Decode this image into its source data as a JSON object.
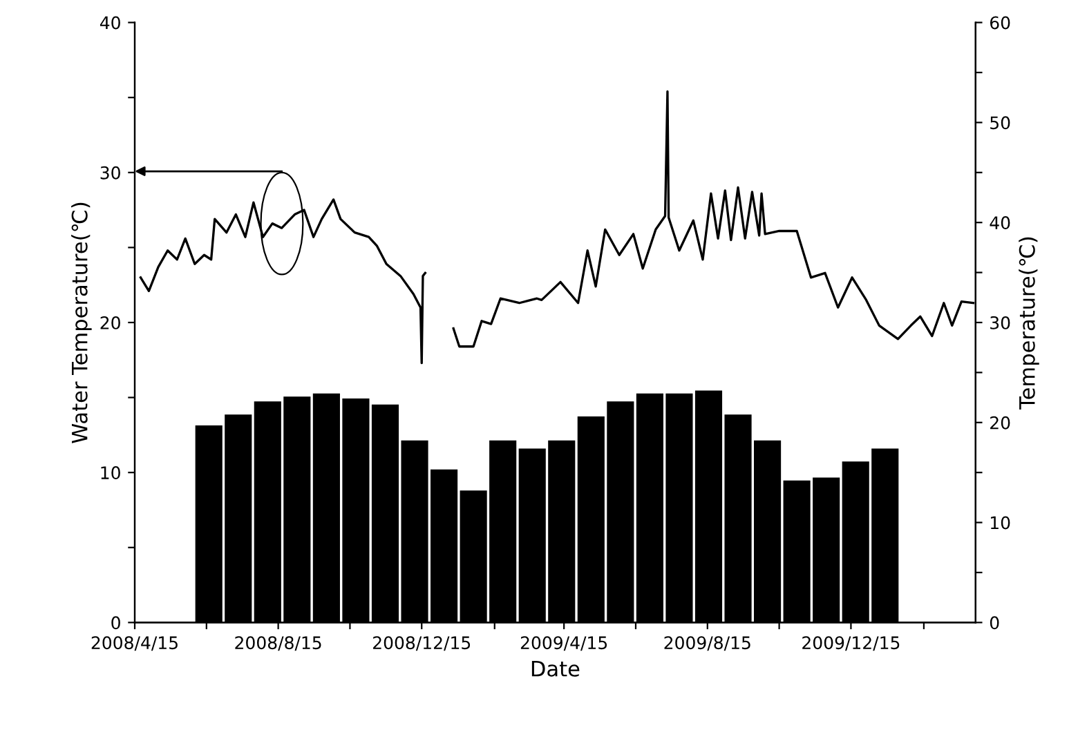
{
  "chart_data": {
    "type": "line",
    "xlabel": "Date",
    "ylabel": "Water Temperature(℃)",
    "y2label": "Temperature(℃)",
    "xlim": [
      "2008-04-15",
      "2010-03-31"
    ],
    "xticks": [
      {
        "value": "2008-04-15",
        "label": "2008/4/15"
      },
      {
        "value": "2008-06-15",
        "label": null
      },
      {
        "value": "2008-08-15",
        "label": "2008/8/15"
      },
      {
        "value": "2008-10-15",
        "label": null
      },
      {
        "value": "2008-12-15",
        "label": "2008/12/15"
      },
      {
        "value": "2009-02-15",
        "label": null
      },
      {
        "value": "2009-04-15",
        "label": "2009/4/15"
      },
      {
        "value": "2009-06-15",
        "label": null
      },
      {
        "value": "2009-08-15",
        "label": "2009/8/15"
      },
      {
        "value": "2009-10-15",
        "label": null
      },
      {
        "value": "2009-12-15",
        "label": "2009/12/15"
      },
      {
        "value": "2010-02-15",
        "label": null
      }
    ],
    "ylim": [
      0,
      40
    ],
    "yticks": [
      0,
      {
        "value": 5,
        "label": null
      },
      10,
      {
        "value": 15,
        "label": null
      },
      20,
      {
        "value": 25,
        "label": null
      },
      30,
      {
        "value": 35,
        "label": null
      },
      40
    ],
    "y2lim": [
      0,
      60
    ],
    "y2ticks": [
      0,
      {
        "value": 5,
        "label": null
      },
      10,
      {
        "value": 15,
        "label": null
      },
      20,
      {
        "value": 25,
        "label": null
      },
      30,
      {
        "value": 35,
        "label": null
      },
      40,
      {
        "value": 45,
        "label": null
      },
      50,
      {
        "value": 55,
        "label": null
      },
      60
    ],
    "grid": false,
    "legend": false,
    "marker": "none",
    "line_style": "solid",
    "series": [
      {
        "type": "bar",
        "axis": "y2",
        "color": "#000000",
        "x": [
          "2008-06-17",
          "2008-07-12",
          "2008-08-06",
          "2008-08-31",
          "2008-09-25",
          "2008-10-20",
          "2008-11-14",
          "2008-12-09",
          "2009-01-03",
          "2009-01-28",
          "2009-02-22",
          "2009-03-19",
          "2009-04-13",
          "2009-05-08",
          "2009-06-02",
          "2009-06-27",
          "2009-07-22",
          "2009-08-16",
          "2009-09-10",
          "2009-10-05",
          "2009-10-30",
          "2009-11-24",
          "2009-12-19",
          "2010-01-13"
        ],
        "values": [
          19.7,
          20.8,
          22.1,
          22.6,
          22.9,
          22.4,
          21.8,
          18.2,
          15.3,
          13.2,
          18.2,
          17.4,
          18.2,
          20.6,
          22.1,
          22.9,
          22.9,
          23.2,
          20.8,
          18.2,
          14.2,
          14.5,
          16.1,
          17.4
        ]
      },
      {
        "color": "#000000",
        "x": [
          "2008-04-20",
          "2008-04-27",
          "2008-05-05",
          "2008-05-13",
          "2008-05-21",
          "2008-05-28",
          "2008-06-05",
          "2008-06-13",
          "2008-06-19",
          "2008-06-22",
          "2008-07-02",
          "2008-07-10",
          "2008-07-18",
          "2008-07-25",
          "2008-08-02",
          "2008-08-10",
          "2008-08-18",
          "2008-08-29",
          "2008-09-06",
          "2008-09-14",
          "2008-09-21",
          "2008-10-01",
          "2008-10-07",
          "2008-10-19",
          "2008-10-31",
          "2008-11-07",
          "2008-11-15",
          "2008-11-27",
          "2008-12-08",
          "2008-12-14",
          "2008-12-15",
          "2008-12-16",
          "2008-12-18",
          "2008-12-28",
          "2009-01-11",
          "2009-01-16",
          "2009-01-28",
          "2009-02-04",
          "2009-02-12",
          "2009-02-20",
          "2009-03-08",
          "2009-03-23",
          "2009-03-27",
          "2009-04-12",
          "2009-04-27",
          "2009-05-05",
          "2009-05-12",
          "2009-05-20",
          "2009-06-01",
          "2009-06-13",
          "2009-06-21",
          "2009-07-02",
          "2009-07-10",
          "2009-07-12",
          "2009-07-13",
          "2009-07-22",
          "2009-08-03",
          "2009-08-11",
          "2009-08-18",
          "2009-08-24",
          "2009-08-30",
          "2009-09-04",
          "2009-09-10",
          "2009-09-16",
          "2009-09-22",
          "2009-09-28",
          "2009-09-30",
          "2009-10-03",
          "2009-10-15",
          "2009-10-30",
          "2009-11-11",
          "2009-11-23",
          "2009-12-04",
          "2009-12-16",
          "2009-12-28",
          "2010-01-08",
          "2010-01-24",
          "2010-02-04",
          "2010-02-12",
          "2010-02-22",
          "2010-03-04",
          "2010-03-11",
          "2010-03-19",
          "2010-03-29"
        ],
        "values": [
          23.0,
          22.1,
          23.7,
          24.8,
          24.2,
          25.6,
          23.9,
          24.5,
          24.2,
          26.9,
          26.0,
          27.2,
          25.7,
          28.0,
          25.7,
          26.6,
          26.3,
          27.2,
          27.5,
          25.7,
          26.9,
          28.2,
          26.9,
          26.0,
          25.7,
          25.1,
          23.9,
          23.1,
          21.9,
          21.0,
          17.3,
          23.1,
          23.3,
          null,
          19.6,
          18.4,
          18.4,
          20.1,
          19.9,
          21.6,
          21.3,
          21.6,
          21.5,
          22.7,
          21.3,
          24.8,
          22.4,
          26.2,
          24.5,
          25.9,
          23.6,
          26.2,
          27.1,
          35.4,
          27.0,
          24.8,
          26.8,
          24.2,
          28.6,
          25.6,
          28.8,
          25.5,
          29.0,
          25.6,
          28.7,
          25.8,
          28.6,
          25.9,
          26.1,
          26.1,
          23.0,
          23.3,
          21.0,
          23.0,
          21.5,
          19.8,
          18.9,
          19.8,
          20.4,
          19.1,
          21.3,
          19.8,
          21.4,
          21.3
        ]
      }
    ]
  }
}
